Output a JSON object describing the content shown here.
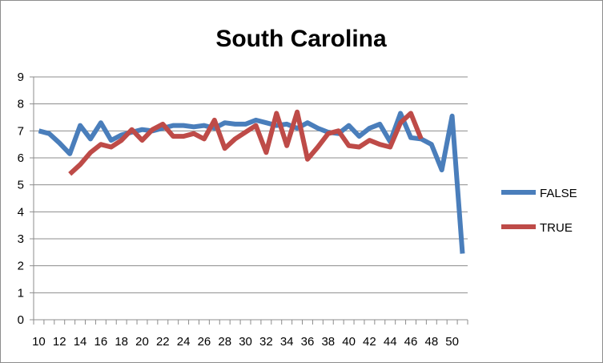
{
  "chart_data": {
    "type": "line",
    "title": "South Carolina",
    "xlabel": "",
    "ylabel": "",
    "ylim": [
      0,
      9
    ],
    "xlim": [
      10,
      51
    ],
    "x_tick_labels": [
      "10",
      "12",
      "14",
      "16",
      "18",
      "20",
      "22",
      "24",
      "26",
      "28",
      "30",
      "32",
      "34",
      "36",
      "38",
      "40",
      "42",
      "44",
      "46",
      "48",
      "50"
    ],
    "y_tick_labels": [
      "0",
      "1",
      "2",
      "3",
      "4",
      "5",
      "6",
      "7",
      "8",
      "9"
    ],
    "grid": "horizontal",
    "legend_position": "right",
    "series": [
      {
        "name": "FALSE",
        "color": "#4a7ebb",
        "points": [
          [
            10,
            7.0
          ],
          [
            11,
            6.9
          ],
          [
            12,
            6.55
          ],
          [
            13,
            6.15
          ],
          [
            14,
            7.2
          ],
          [
            15,
            6.7
          ],
          [
            16,
            7.3
          ],
          [
            17,
            6.65
          ],
          [
            18,
            6.85
          ],
          [
            19,
            6.95
          ],
          [
            20,
            7.05
          ],
          [
            21,
            7.0
          ],
          [
            22,
            7.1
          ],
          [
            23,
            7.2
          ],
          [
            24,
            7.2
          ],
          [
            25,
            7.15
          ],
          [
            26,
            7.2
          ],
          [
            27,
            7.1
          ],
          [
            28,
            7.3
          ],
          [
            29,
            7.25
          ],
          [
            30,
            7.25
          ],
          [
            31,
            7.4
          ],
          [
            32,
            7.3
          ],
          [
            33,
            7.2
          ],
          [
            34,
            7.25
          ],
          [
            35,
            7.1
          ],
          [
            36,
            7.3
          ],
          [
            37,
            7.1
          ],
          [
            38,
            6.95
          ],
          [
            39,
            6.9
          ],
          [
            40,
            7.2
          ],
          [
            41,
            6.8
          ],
          [
            42,
            7.1
          ],
          [
            43,
            7.25
          ],
          [
            44,
            6.6
          ],
          [
            45,
            7.65
          ],
          [
            46,
            6.75
          ],
          [
            47,
            6.7
          ],
          [
            48,
            6.5
          ],
          [
            49,
            5.55
          ],
          [
            50,
            7.55
          ],
          [
            51,
            2.45
          ]
        ]
      },
      {
        "name": "TRUE",
        "color": "#be4b48",
        "points": [
          [
            13,
            5.4
          ],
          [
            14,
            5.75
          ],
          [
            15,
            6.2
          ],
          [
            16,
            6.5
          ],
          [
            17,
            6.4
          ],
          [
            18,
            6.65
          ],
          [
            19,
            7.05
          ],
          [
            20,
            6.65
          ],
          [
            21,
            7.05
          ],
          [
            22,
            7.25
          ],
          [
            23,
            6.8
          ],
          [
            24,
            6.8
          ],
          [
            25,
            6.9
          ],
          [
            26,
            6.7
          ],
          [
            27,
            7.4
          ],
          [
            28,
            6.35
          ],
          [
            29,
            6.7
          ],
          [
            30,
            6.95
          ],
          [
            31,
            7.2
          ],
          [
            32,
            6.2
          ],
          [
            33,
            7.65
          ],
          [
            34,
            6.45
          ],
          [
            35,
            7.7
          ],
          [
            36,
            5.95
          ],
          [
            37,
            6.4
          ],
          [
            38,
            6.9
          ],
          [
            39,
            7.0
          ],
          [
            40,
            6.45
          ],
          [
            41,
            6.4
          ],
          [
            42,
            6.65
          ],
          [
            43,
            6.5
          ],
          [
            44,
            6.4
          ],
          [
            45,
            7.3
          ],
          [
            46,
            7.65
          ],
          [
            47,
            6.7
          ]
        ]
      }
    ]
  }
}
